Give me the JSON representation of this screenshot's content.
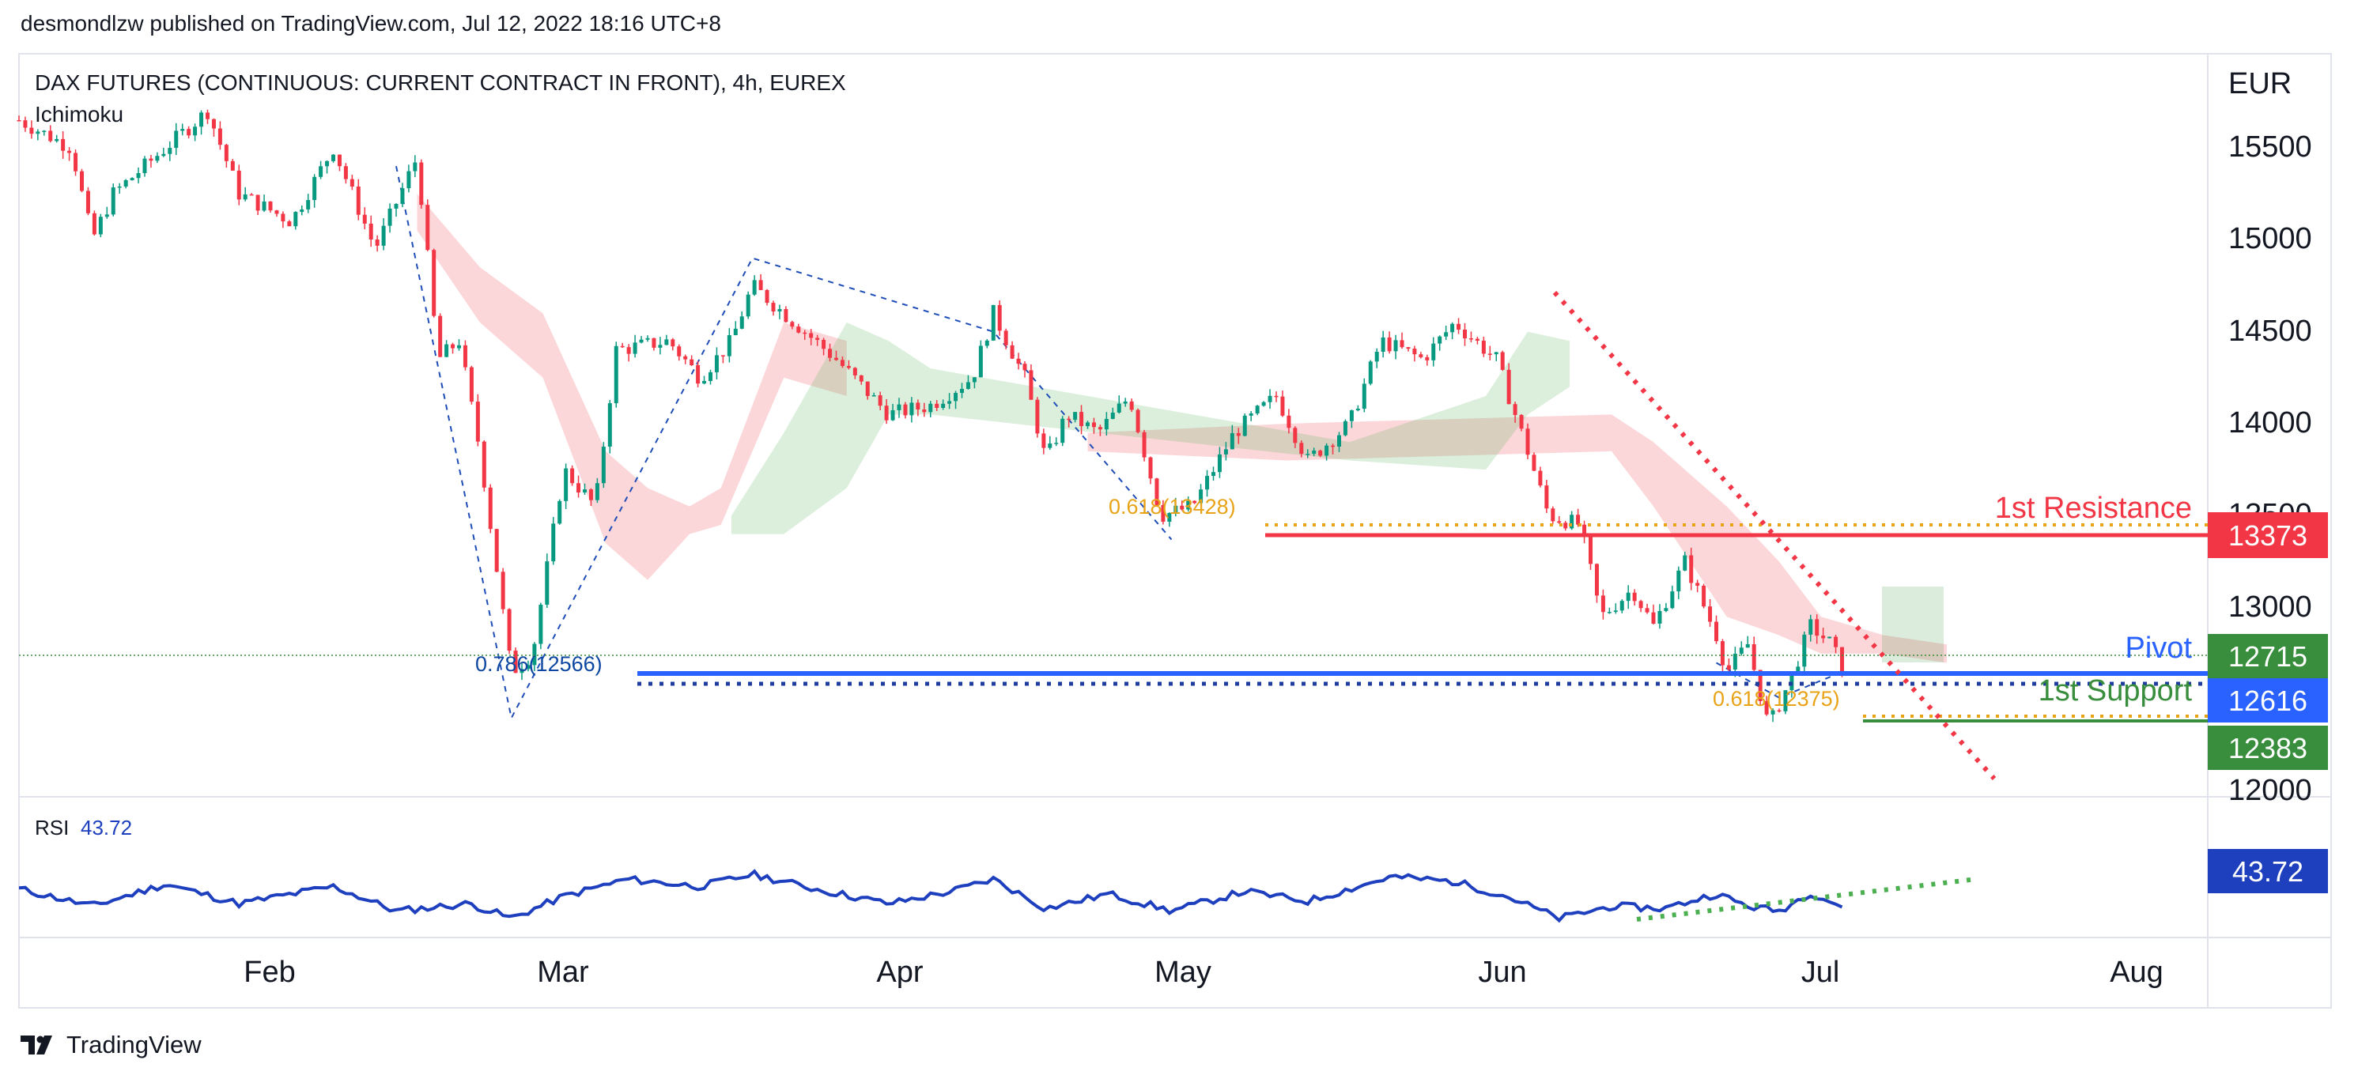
{
  "header": {
    "published": "desmondlzw published on TradingView.com, Jul 12, 2022 18:16 UTC+8"
  },
  "footer": {
    "brand": "TradingView"
  },
  "chart": {
    "symbol": "DAX FUTURES (CONTINUOUS: CURRENT CONTRACT IN FRONT), 4h, EUREX",
    "indicator": "Ichimoku",
    "currency": "EUR",
    "price_ticks": [
      "15500",
      "15000",
      "14500",
      "14000",
      "13500",
      "13000",
      "12000"
    ],
    "time_ticks": [
      "Feb",
      "Mar",
      "Apr",
      "May",
      "Jun",
      "Jul",
      "Aug"
    ],
    "levels": {
      "resistance": {
        "label": "1st Resistance",
        "price": "13373",
        "color": "#f23645"
      },
      "pivot": {
        "label": "Pivot",
        "price": "12616",
        "color": "#2962ff"
      },
      "support": {
        "label": "1st Support",
        "price": "12383",
        "color": "#388e3c"
      },
      "last": {
        "price": "12715",
        "color": "#388e3c"
      }
    },
    "fib": [
      {
        "label": "0.618(13428)",
        "color": "#e8a317"
      },
      {
        "label": "0.786(12566)",
        "color": "#0d47a1"
      },
      {
        "label": "0.618(12375)",
        "color": "#e8a317"
      }
    ],
    "rsi": {
      "label": "RSI",
      "value": "43.72",
      "color": "#1e40bf"
    }
  },
  "chart_data": {
    "type": "candlestick",
    "title": "DAX FUTURES (CONTINUOUS: CURRENT CONTRACT IN FRONT), 4h, EUREX",
    "x_ticks": [
      "Feb",
      "Mar",
      "Apr",
      "May",
      "Jun",
      "Jul",
      "Aug"
    ],
    "y_ticks": [
      12000,
      13000,
      13500,
      14000,
      14500,
      15000,
      15500
    ],
    "ylim": [
      11950,
      15850
    ],
    "close_path": [
      {
        "x": "Jan 19",
        "y": 15700
      },
      {
        "x": "Jan 24",
        "y": 15550
      },
      {
        "x": "Jan 26",
        "y": 15050
      },
      {
        "x": "Jan 28",
        "y": 15300
      },
      {
        "x": "Feb 2",
        "y": 15550
      },
      {
        "x": "Feb 6",
        "y": 15750
      },
      {
        "x": "Feb 9",
        "y": 15300
      },
      {
        "x": "Feb 14",
        "y": 15150
      },
      {
        "x": "Feb 18",
        "y": 15550
      },
      {
        "x": "Feb 22",
        "y": 15000
      },
      {
        "x": "Feb 26",
        "y": 15500
      },
      {
        "x": "Feb 28",
        "y": 14400
      },
      {
        "x": "Mar 2",
        "y": 14500
      },
      {
        "x": "Mar 4",
        "y": 13900
      },
      {
        "x": "Mar 7",
        "y": 12700
      },
      {
        "x": "Mar 9",
        "y": 12800
      },
      {
        "x": "Mar 12",
        "y": 13800
      },
      {
        "x": "Mar 15",
        "y": 13600
      },
      {
        "x": "Mar 17",
        "y": 14450
      },
      {
        "x": "Mar 22",
        "y": 14500
      },
      {
        "x": "Mar 25",
        "y": 14300
      },
      {
        "x": "Mar 28",
        "y": 14500
      },
      {
        "x": "Mar 30",
        "y": 14800
      },
      {
        "x": "Apr 3",
        "y": 14600
      },
      {
        "x": "Apr 7",
        "y": 14400
      },
      {
        "x": "Apr 12",
        "y": 14100
      },
      {
        "x": "Apr 16",
        "y": 14150
      },
      {
        "x": "Apr 20",
        "y": 14300
      },
      {
        "x": "Apr 22",
        "y": 14650
      },
      {
        "x": "Apr 25",
        "y": 14300
      },
      {
        "x": "Apr 27",
        "y": 13850
      },
      {
        "x": "Apr 29",
        "y": 14100
      },
      {
        "x": "May 2",
        "y": 14000
      },
      {
        "x": "May 5",
        "y": 14200
      },
      {
        "x": "May 8",
        "y": 13550
      },
      {
        "x": "May 11",
        "y": 13600
      },
      {
        "x": "May 15",
        "y": 14000
      },
      {
        "x": "May 19",
        "y": 14200
      },
      {
        "x": "May 22",
        "y": 13850
      },
      {
        "x": "May 26",
        "y": 14050
      },
      {
        "x": "May 29",
        "y": 14500
      },
      {
        "x": "Jun 2",
        "y": 14400
      },
      {
        "x": "Jun 5",
        "y": 14600
      },
      {
        "x": "Jun 9",
        "y": 14400
      },
      {
        "x": "Jun 12",
        "y": 13900
      },
      {
        "x": "Jun 14",
        "y": 13550
      },
      {
        "x": "Jun 17",
        "y": 13500
      },
      {
        "x": "Jun 19",
        "y": 13000
      },
      {
        "x": "Jun 22",
        "y": 13150
      },
      {
        "x": "Jun 24",
        "y": 12950
      },
      {
        "x": "Jun 27",
        "y": 13300
      },
      {
        "x": "Jun 30",
        "y": 12900
      },
      {
        "x": "Jul 1",
        "y": 12700
      },
      {
        "x": "Jul 3",
        "y": 12850
      },
      {
        "x": "Jul 5",
        "y": 12400
      },
      {
        "x": "Jul 7",
        "y": 12650
      },
      {
        "x": "Jul 9",
        "y": 12950
      },
      {
        "x": "Jul 11",
        "y": 12850
      },
      {
        "x": "Jul 12",
        "y": 12715
      }
    ],
    "levels": [
      {
        "name": "1st Resistance",
        "y": 13373
      },
      {
        "name": "Pivot",
        "y": 12616
      },
      {
        "name": "1st Support",
        "y": 12383
      },
      {
        "name": "0.618(13428)",
        "y": 13428
      },
      {
        "name": "0.786(12566)",
        "y": 12566
      },
      {
        "name": "0.618(12375)",
        "y": 12375
      }
    ],
    "last_price": 12715,
    "rsi": {
      "last": 43.72,
      "path": [
        {
          "x": "Jan 19",
          "y": 58
        },
        {
          "x": "Jan 26",
          "y": 44
        },
        {
          "x": "Feb 2",
          "y": 62
        },
        {
          "x": "Feb 9",
          "y": 46
        },
        {
          "x": "Feb 18",
          "y": 60
        },
        {
          "x": "Feb 24",
          "y": 40
        },
        {
          "x": "Mar 3",
          "y": 46
        },
        {
          "x": "Mar 7",
          "y": 34
        },
        {
          "x": "Mar 12",
          "y": 52
        },
        {
          "x": "Mar 18",
          "y": 66
        },
        {
          "x": "Mar 25",
          "y": 60
        },
        {
          "x": "Mar 30",
          "y": 70
        },
        {
          "x": "Apr 5",
          "y": 58
        },
        {
          "x": "Apr 12",
          "y": 46
        },
        {
          "x": "Apr 18",
          "y": 56
        },
        {
          "x": "Apr 22",
          "y": 66
        },
        {
          "x": "Apr 27",
          "y": 42
        },
        {
          "x": "May 3",
          "y": 54
        },
        {
          "x": "May 9",
          "y": 40
        },
        {
          "x": "May 16",
          "y": 56
        },
        {
          "x": "May 22",
          "y": 48
        },
        {
          "x": "May 30",
          "y": 68
        },
        {
          "x": "Jun 5",
          "y": 64
        },
        {
          "x": "Jun 10",
          "y": 52
        },
        {
          "x": "Jun 15",
          "y": 34
        },
        {
          "x": "Jun 20",
          "y": 44
        },
        {
          "x": "Jun 25",
          "y": 42
        },
        {
          "x": "Jun 30",
          "y": 54
        },
        {
          "x": "Jul 3",
          "y": 44
        },
        {
          "x": "Jul 6",
          "y": 40
        },
        {
          "x": "Jul 9",
          "y": 55
        },
        {
          "x": "Jul 12",
          "y": 43.72
        }
      ]
    }
  }
}
